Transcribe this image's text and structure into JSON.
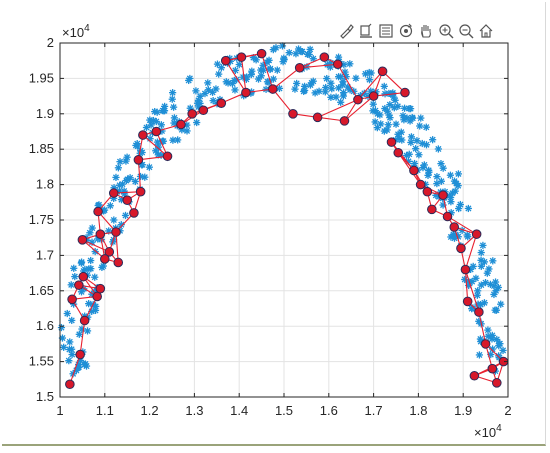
{
  "chart_data": {
    "type": "scatter",
    "title": "",
    "xlabel": "",
    "ylabel": "",
    "xlim": [
      10000,
      20000
    ],
    "ylim": [
      15000,
      20000
    ],
    "grid": true,
    "x_ticks": [
      "1",
      "1.1",
      "1.2",
      "1.3",
      "1.4",
      "1.5",
      "1.6",
      "1.7",
      "1.8",
      "1.9",
      "2"
    ],
    "y_ticks": [
      "1.5",
      "1.55",
      "1.6",
      "1.65",
      "1.7",
      "1.75",
      "1.8",
      "1.85",
      "1.9",
      "1.95",
      "2"
    ],
    "x_exponent": "10",
    "x_exponent_power": "4",
    "y_exponent": "10",
    "y_exponent_power": "4",
    "scatter_color": "#1f8fd6",
    "node_color": "#d7182a",
    "edge_color": "#e8202f",
    "arc": {
      "center_x": 15000,
      "center_y": 14850,
      "radius_x": 5000,
      "radius_y": 4950,
      "band_width": 700,
      "num_points": 420
    },
    "nodes": [
      [
        10220,
        15180
      ],
      [
        10450,
        15600
      ],
      [
        10550,
        16080
      ],
      [
        10270,
        16380
      ],
      [
        10520,
        16700
      ],
      [
        10500,
        17220
      ],
      [
        10420,
        16580
      ],
      [
        10830,
        16420
      ],
      [
        10900,
        16530
      ],
      [
        10900,
        17300
      ],
      [
        10850,
        17620
      ],
      [
        11100,
        17050
      ],
      [
        11000,
        16950
      ],
      [
        11300,
        16900
      ],
      [
        11250,
        17330
      ],
      [
        11200,
        17880
      ],
      [
        11500,
        17780
      ],
      [
        11650,
        17600
      ],
      [
        11800,
        17900
      ],
      [
        11750,
        18350
      ],
      [
        11850,
        18700
      ],
      [
        12150,
        18750
      ],
      [
        12400,
        18400
      ],
      [
        12700,
        18850
      ],
      [
        12950,
        19000
      ],
      [
        13200,
        19050
      ],
      [
        13600,
        19150
      ],
      [
        13700,
        19750
      ],
      [
        14050,
        19800
      ],
      [
        14150,
        19300
      ],
      [
        14500,
        19850
      ],
      [
        14750,
        19350
      ],
      [
        15200,
        19000
      ],
      [
        15350,
        19650
      ],
      [
        15750,
        18950
      ],
      [
        15900,
        19800
      ],
      [
        16200,
        19700
      ],
      [
        16350,
        18900
      ],
      [
        16650,
        19200
      ],
      [
        17000,
        19250
      ],
      [
        17200,
        19600
      ],
      [
        17400,
        18600
      ],
      [
        17550,
        18450
      ],
      [
        17700,
        19300
      ],
      [
        17900,
        18200
      ],
      [
        18050,
        18000
      ],
      [
        18200,
        17900
      ],
      [
        18300,
        17650
      ],
      [
        18550,
        17850
      ],
      [
        18650,
        17550
      ],
      [
        18800,
        17400
      ],
      [
        18950,
        17100
      ],
      [
        19050,
        16800
      ],
      [
        19100,
        16350
      ],
      [
        19300,
        17300
      ],
      [
        19350,
        16200
      ],
      [
        19500,
        15750
      ],
      [
        19650,
        15400
      ],
      [
        19900,
        15500
      ],
      [
        19750,
        15200
      ],
      [
        19250,
        15300
      ]
    ]
  }
}
